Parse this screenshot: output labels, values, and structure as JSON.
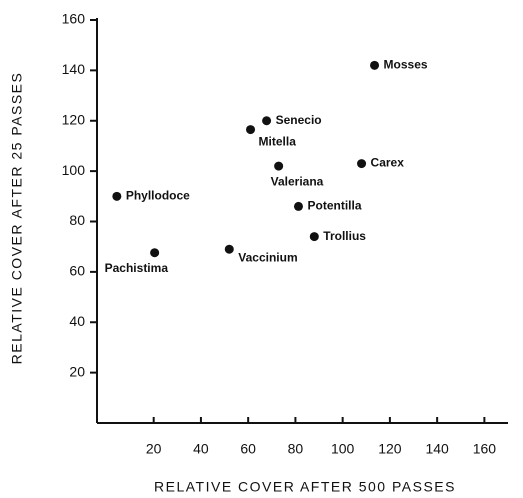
{
  "chart_data": {
    "type": "scatter",
    "xlabel": "RELATIVE COVER AFTER 500 PASSES",
    "ylabel": "RELATIVE COVER AFTER 25 PASSES",
    "labels": [
      "Mosses",
      "Senecio",
      "Mitella",
      "Valeriana",
      "Carex",
      "Phyllodoce",
      "Potentilla",
      "Trollius",
      "Vaccinium",
      "Pachistima"
    ],
    "x": [
      113.5,
      67.8,
      61,
      72.9,
      108,
      4.4,
      81.3,
      88,
      52,
      20.4
    ],
    "y": [
      142,
      120,
      116.5,
      102,
      103,
      90,
      86,
      74,
      69,
      67.6
    ],
    "color": "#111111",
    "xlim": [
      -4,
      170
    ],
    "ylim": [
      0,
      160
    ],
    "xticks": [
      20,
      40,
      60,
      80,
      100,
      120,
      140,
      160
    ],
    "yticks": [
      20,
      40,
      60,
      80,
      100,
      120,
      140,
      160
    ]
  }
}
